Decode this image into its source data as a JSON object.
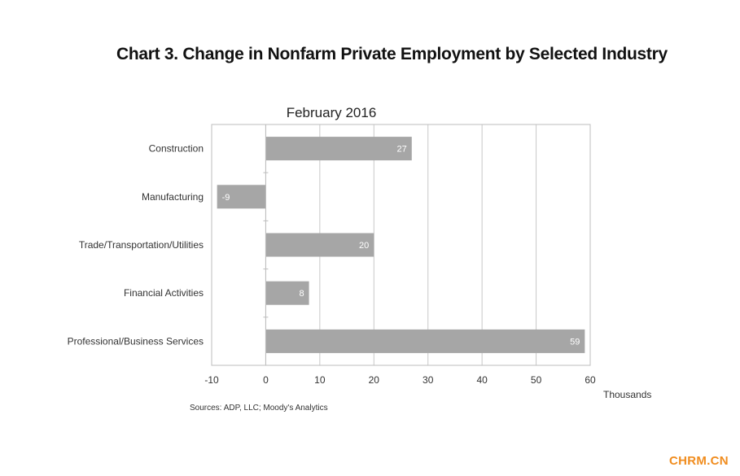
{
  "title": "Chart 3. Change in Nonfarm Private Employment by Selected Industry",
  "source_note": "Sources: ADP, LLC; Moody's Analytics",
  "watermark": "CHRM.CN",
  "chart_data": {
    "type": "bar",
    "orientation": "horizontal",
    "subtitle": "February 2016",
    "categories": [
      "Construction",
      "Manufacturing",
      "Trade/Transportation/Utilities",
      "Financial Activities",
      "Professional/Business Services"
    ],
    "values": [
      27,
      -9,
      20,
      8,
      59
    ],
    "data_labels": [
      "27",
      "-9",
      "20",
      "8",
      "59"
    ],
    "xlabel": "Thousands",
    "xlim": [
      -10,
      60
    ],
    "x_ticks": [
      -10,
      0,
      10,
      20,
      30,
      40,
      50,
      60
    ],
    "grid": "vertical",
    "bar_color": "#a6a6a6",
    "gridline_color": "#c8c8c8",
    "legend": "none"
  }
}
